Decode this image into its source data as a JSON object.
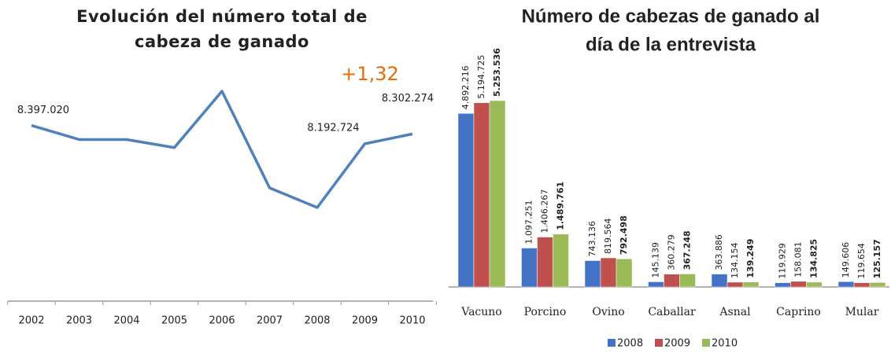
{
  "chart_data": [
    {
      "type": "line",
      "title": [
        "Evolución del número total de",
        "cabeza de ganado"
      ],
      "annotation": "+1,32",
      "annotation_color": "#e46c0a",
      "categories": [
        "2002",
        "2003",
        "2004",
        "2005",
        "2006",
        "2007",
        "2008",
        "2009",
        "2010"
      ],
      "values": [
        8397020,
        8240000,
        8240000,
        8150000,
        8780000,
        7700000,
        7480000,
        8192724,
        8302274
      ],
      "value_labels": [
        "8.397.020",
        null,
        null,
        null,
        null,
        null,
        null,
        "8.192.724",
        "8.302.274"
      ],
      "color": "#4f81bd"
    },
    {
      "type": "bar",
      "title": [
        "Número de cabezas de ganado al",
        "día de la entrevista"
      ],
      "categories": [
        "Vacuno",
        "Porcino",
        "Ovino",
        "Caballar",
        "Asnal",
        "Caprino",
        "Mular"
      ],
      "series": [
        {
          "name": "2008",
          "color": "#4472c4",
          "values": [
            4892216,
            1097251,
            743136,
            145139,
            363886,
            119929,
            149606
          ],
          "value_labels": [
            "4.892.216",
            "1.097.251",
            "743.136",
            "145.139",
            "363.886",
            "119.929",
            "149.606"
          ]
        },
        {
          "name": "2009",
          "color": "#c0504d",
          "values": [
            5194725,
            1406267,
            819564,
            360279,
            134154,
            158081,
            119654
          ],
          "value_labels": [
            "5.194.725",
            "1.406.267",
            "819.564",
            "360.279",
            "134.154",
            "158.081",
            "119.654"
          ]
        },
        {
          "name": "2010",
          "color": "#9bbb59",
          "values": [
            5253536,
            1489761,
            792498,
            367248,
            139249,
            134825,
            125157
          ],
          "value_labels": [
            "5.253.536",
            "1.489.761",
            "792.498",
            "367.248",
            "139.249",
            "134.825",
            "125.157"
          ]
        }
      ],
      "legend": "bottom"
    }
  ]
}
